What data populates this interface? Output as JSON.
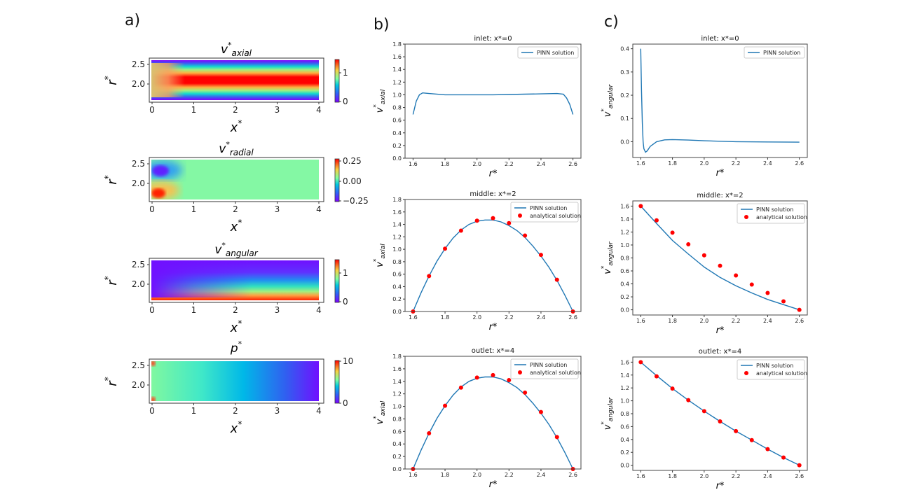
{
  "panel_labels": {
    "a": "a)",
    "b": "b)",
    "c": "c)"
  },
  "heatmaps": [
    {
      "title": {
        "base": "v",
        "sup": "*",
        "sub": "axial"
      },
      "field": "axial",
      "colorbar_ticks": [
        "1",
        "0"
      ],
      "colorbar_range": [
        0,
        1.5
      ]
    },
    {
      "title": {
        "base": "v",
        "sup": "*",
        "sub": "radial"
      },
      "field": "radial",
      "colorbar_ticks": [
        "0.25",
        "0.00",
        "−0.25"
      ],
      "colorbar_range": [
        -0.3,
        0.3
      ]
    },
    {
      "title": {
        "base": "v",
        "sup": "*",
        "sub": "angular"
      },
      "field": "angular",
      "colorbar_ticks": [
        "1",
        "0"
      ],
      "colorbar_range": [
        0,
        1.6
      ]
    },
    {
      "title": {
        "base": "p",
        "sup": "*",
        "sub": ""
      },
      "field": "pressure",
      "colorbar_ticks": [
        "10",
        "0"
      ],
      "colorbar_range": [
        0,
        10
      ]
    }
  ],
  "heatmap_axes": {
    "xlabel": {
      "base": "x",
      "sup": "*"
    },
    "ylabel": {
      "base": "r",
      "sup": "*"
    },
    "xticks": [
      "0",
      "1",
      "2",
      "3",
      "4"
    ],
    "yticks": [
      "2.5",
      "2.0"
    ],
    "xlim": [
      0,
      4
    ],
    "ylim": [
      1.6,
      2.6
    ],
    "colormap": "rainbow"
  },
  "chart_data": [
    {
      "type": "line",
      "panel": "b",
      "title": "inlet: x*=0",
      "title_parts": {
        "pre": "inlet: ",
        "var": "x",
        "sup": "*",
        "post": "=0"
      },
      "xlabel": "r*",
      "ylabel": {
        "base": "v",
        "sup": "*",
        "sub": "axial"
      },
      "xlim": [
        1.55,
        2.65
      ],
      "ylim": [
        0,
        1.8
      ],
      "xticks": [
        "1.6",
        "1.8",
        "2.0",
        "2.2",
        "2.4",
        "2.6"
      ],
      "yticks": [
        "0.0",
        "0.2",
        "0.4",
        "0.6",
        "0.8",
        "1.0",
        "1.2",
        "1.4",
        "1.6",
        "1.8"
      ],
      "legend": {
        "position": "top-right",
        "entries": [
          "PINN solution"
        ]
      },
      "series": [
        {
          "name": "PINN solution",
          "kind": "line",
          "color": "#1f77b4",
          "x": [
            1.6,
            1.62,
            1.64,
            1.66,
            1.7,
            1.8,
            1.9,
            2.0,
            2.1,
            2.2,
            2.3,
            2.4,
            2.5,
            2.54,
            2.56,
            2.58,
            2.6
          ],
          "y": [
            0.69,
            0.9,
            1.0,
            1.03,
            1.02,
            1.0,
            1.0,
            1.0,
            1.0,
            1.005,
            1.01,
            1.015,
            1.02,
            1.01,
            0.95,
            0.85,
            0.69
          ]
        }
      ]
    },
    {
      "type": "line",
      "panel": "b",
      "title": "middle: x*=2",
      "title_parts": {
        "pre": "middle: ",
        "var": "x",
        "sup": "*",
        "post": "=2"
      },
      "xlabel": "r*",
      "ylabel": {
        "base": "v",
        "sup": "*",
        "sub": "axial"
      },
      "xlim": [
        1.55,
        2.65
      ],
      "ylim": [
        0,
        1.8
      ],
      "xticks": [
        "1.6",
        "1.8",
        "2.0",
        "2.2",
        "2.4",
        "2.6"
      ],
      "yticks": [
        "0.0",
        "0.2",
        "0.4",
        "0.6",
        "0.8",
        "1.0",
        "1.2",
        "1.4",
        "1.6",
        "1.8"
      ],
      "legend": {
        "position": "top-right",
        "entries": [
          "PINN solution",
          "analytical solution"
        ]
      },
      "series": [
        {
          "name": "PINN solution",
          "kind": "line",
          "color": "#1f77b4",
          "x": [
            1.6,
            1.65,
            1.7,
            1.75,
            1.8,
            1.85,
            1.9,
            1.95,
            2.0,
            2.05,
            2.1,
            2.15,
            2.2,
            2.25,
            2.3,
            2.35,
            2.4,
            2.45,
            2.5,
            2.55,
            2.6
          ],
          "y": [
            0.0,
            0.3,
            0.57,
            0.81,
            1.01,
            1.18,
            1.31,
            1.4,
            1.45,
            1.47,
            1.47,
            1.44,
            1.38,
            1.3,
            1.19,
            1.05,
            0.89,
            0.71,
            0.5,
            0.26,
            0.0
          ]
        },
        {
          "name": "analytical solution",
          "kind": "scatter",
          "color": "#ff0000",
          "x": [
            1.6,
            1.7,
            1.8,
            1.9,
            2.0,
            2.1,
            2.2,
            2.3,
            2.4,
            2.5,
            2.6
          ],
          "y": [
            0.0,
            0.57,
            1.01,
            1.3,
            1.46,
            1.5,
            1.42,
            1.22,
            0.91,
            0.51,
            0.0
          ]
        }
      ]
    },
    {
      "type": "line",
      "panel": "b",
      "title": "outlet: x*=4",
      "title_parts": {
        "pre": "outlet: ",
        "var": "x",
        "sup": "*",
        "post": "=4"
      },
      "xlabel": "r*",
      "ylabel": {
        "base": "v",
        "sup": "*",
        "sub": "axial"
      },
      "xlim": [
        1.55,
        2.65
      ],
      "ylim": [
        0,
        1.8
      ],
      "xticks": [
        "1.6",
        "1.8",
        "2.0",
        "2.2",
        "2.4",
        "2.6"
      ],
      "yticks": [
        "0.0",
        "0.2",
        "0.4",
        "0.6",
        "0.8",
        "1.0",
        "1.2",
        "1.4",
        "1.6",
        "1.8"
      ],
      "legend": {
        "position": "top-right",
        "entries": [
          "PINN solution",
          "analytical solution"
        ]
      },
      "series": [
        {
          "name": "PINN solution",
          "kind": "line",
          "color": "#1f77b4",
          "x": [
            1.6,
            1.65,
            1.7,
            1.75,
            1.8,
            1.85,
            1.9,
            1.95,
            2.0,
            2.05,
            2.1,
            2.15,
            2.2,
            2.25,
            2.3,
            2.35,
            2.4,
            2.45,
            2.5,
            2.55,
            2.6
          ],
          "y": [
            0.0,
            0.3,
            0.57,
            0.81,
            1.01,
            1.18,
            1.31,
            1.4,
            1.45,
            1.47,
            1.47,
            1.44,
            1.38,
            1.3,
            1.19,
            1.05,
            0.89,
            0.71,
            0.5,
            0.26,
            0.0
          ]
        },
        {
          "name": "analytical solution",
          "kind": "scatter",
          "color": "#ff0000",
          "x": [
            1.6,
            1.7,
            1.8,
            1.9,
            2.0,
            2.1,
            2.2,
            2.3,
            2.4,
            2.5,
            2.6
          ],
          "y": [
            0.0,
            0.57,
            1.01,
            1.3,
            1.46,
            1.5,
            1.42,
            1.22,
            0.91,
            0.51,
            0.0
          ]
        }
      ]
    },
    {
      "type": "line",
      "panel": "c",
      "title": "inlet: x*=0",
      "title_parts": {
        "pre": "inlet: ",
        "var": "x",
        "sup": "*",
        "post": "=0"
      },
      "xlabel": "r*",
      "ylabel": {
        "base": "v",
        "sup": "*",
        "sub": "angular"
      },
      "xlim": [
        1.55,
        2.65
      ],
      "ylim": [
        -0.068,
        0.42
      ],
      "xticks": [
        "1.6",
        "1.8",
        "2.0",
        "2.2",
        "2.4",
        "2.6"
      ],
      "yticks": [
        "0.0",
        "0.1",
        "0.2",
        "0.3",
        "0.4"
      ],
      "legend": {
        "position": "top-right",
        "entries": [
          "PINN solution"
        ]
      },
      "series": [
        {
          "name": "PINN solution",
          "kind": "line",
          "color": "#1f77b4",
          "x": [
            1.6,
            1.605,
            1.61,
            1.615,
            1.62,
            1.63,
            1.64,
            1.66,
            1.7,
            1.75,
            1.8,
            1.9,
            2.0,
            2.2,
            2.4,
            2.6
          ],
          "y": [
            0.4,
            0.22,
            0.08,
            0.0,
            -0.03,
            -0.045,
            -0.04,
            -0.02,
            0.0,
            0.008,
            0.009,
            0.007,
            0.004,
            0.0,
            -0.001,
            -0.002
          ]
        }
      ]
    },
    {
      "type": "line",
      "panel": "c",
      "title": "middle: x*=2",
      "title_parts": {
        "pre": "middle: ",
        "var": "x",
        "sup": "*",
        "post": "=2"
      },
      "xlabel": "r*",
      "ylabel": {
        "base": "v",
        "sup": "*",
        "sub": "angular"
      },
      "xlim": [
        1.55,
        2.65
      ],
      "ylim": [
        -0.08,
        1.68
      ],
      "xticks": [
        "1.6",
        "1.8",
        "2.0",
        "2.2",
        "2.4",
        "2.6"
      ],
      "yticks": [
        "0.0",
        "0.2",
        "0.4",
        "0.6",
        "0.8",
        "1.0",
        "1.2",
        "1.4",
        "1.6"
      ],
      "legend": {
        "position": "top-right",
        "entries": [
          "PINN solution",
          "analytical solution"
        ]
      },
      "series": [
        {
          "name": "PINN solution",
          "kind": "line",
          "color": "#1f77b4",
          "x": [
            1.6,
            1.7,
            1.8,
            1.9,
            2.0,
            2.1,
            2.2,
            2.3,
            2.4,
            2.5,
            2.6
          ],
          "y": [
            1.6,
            1.33,
            1.07,
            0.86,
            0.66,
            0.5,
            0.37,
            0.26,
            0.16,
            0.08,
            0.0
          ]
        },
        {
          "name": "analytical solution",
          "kind": "scatter",
          "color": "#ff0000",
          "x": [
            1.6,
            1.7,
            1.8,
            1.9,
            2.0,
            2.1,
            2.2,
            2.3,
            2.4,
            2.5,
            2.6
          ],
          "y": [
            1.6,
            1.38,
            1.19,
            1.01,
            0.84,
            0.68,
            0.53,
            0.39,
            0.26,
            0.13,
            0.0
          ]
        }
      ]
    },
    {
      "type": "line",
      "panel": "c",
      "title": "outlet: x*=4",
      "title_parts": {
        "pre": "outlet: ",
        "var": "x",
        "sup": "*",
        "post": "=4"
      },
      "xlabel": "r*",
      "ylabel": {
        "base": "v",
        "sup": "*",
        "sub": "angular"
      },
      "xlim": [
        1.55,
        2.65
      ],
      "ylim": [
        -0.08,
        1.68
      ],
      "xticks": [
        "1.6",
        "1.8",
        "2.0",
        "2.2",
        "2.4",
        "2.6"
      ],
      "yticks": [
        "0.0",
        "0.2",
        "0.4",
        "0.6",
        "0.8",
        "1.0",
        "1.2",
        "1.4",
        "1.6"
      ],
      "legend": {
        "position": "top-right",
        "entries": [
          "PINN solution",
          "analytical solution"
        ]
      },
      "series": [
        {
          "name": "PINN solution",
          "kind": "line",
          "color": "#1f77b4",
          "x": [
            1.6,
            1.7,
            1.8,
            1.9,
            2.0,
            2.1,
            2.2,
            2.3,
            2.4,
            2.5,
            2.6
          ],
          "y": [
            1.6,
            1.39,
            1.19,
            1.01,
            0.84,
            0.68,
            0.53,
            0.39,
            0.25,
            0.12,
            0.0
          ]
        },
        {
          "name": "analytical solution",
          "kind": "scatter",
          "color": "#ff0000",
          "x": [
            1.6,
            1.7,
            1.8,
            1.9,
            2.0,
            2.1,
            2.2,
            2.3,
            2.4,
            2.5,
            2.6
          ],
          "y": [
            1.6,
            1.38,
            1.19,
            1.01,
            0.84,
            0.68,
            0.53,
            0.39,
            0.25,
            0.12,
            0.0
          ]
        }
      ]
    }
  ]
}
